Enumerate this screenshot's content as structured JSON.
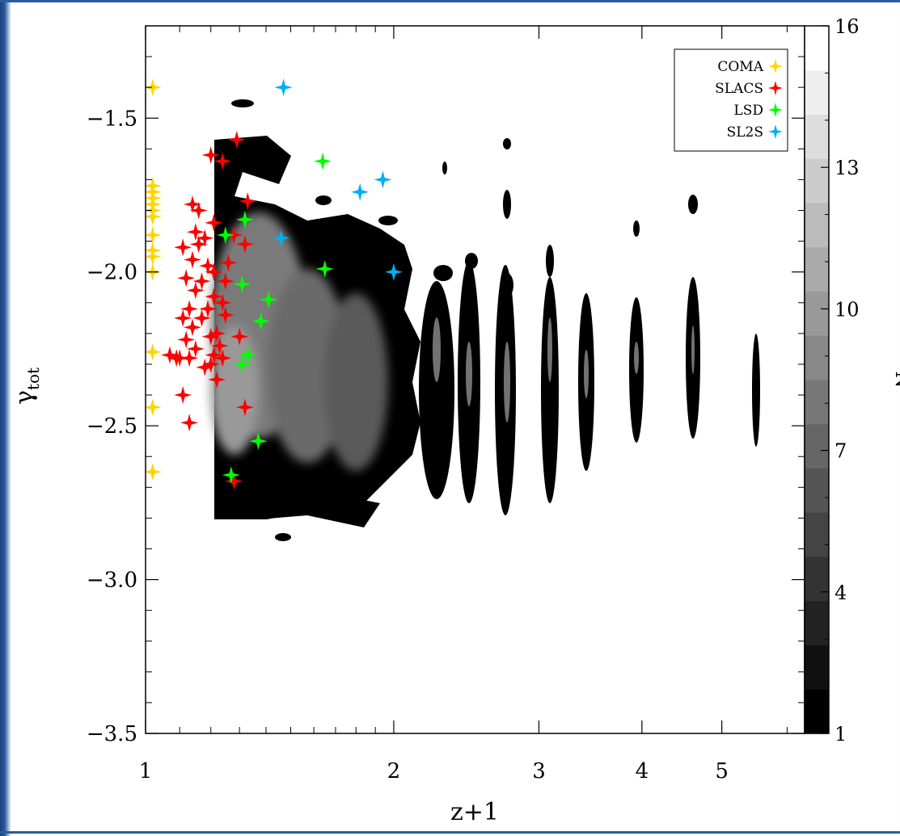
{
  "chart_data": {
    "type": "scatter",
    "xlabel": "z+1",
    "ylabel": "γ",
    "ylabel_sub": "tot",
    "x_scale": "log",
    "xlim": [
      1,
      6.3
    ],
    "ylim": [
      -3.5,
      -1.2
    ],
    "x_ticks": [
      1,
      2,
      3,
      4,
      5
    ],
    "x_tick_labels": [
      "1",
      "2",
      "3",
      "4",
      "5"
    ],
    "y_ticks": [
      -1.5,
      -2.0,
      -2.5,
      -3.0,
      -3.5
    ],
    "y_tick_labels": [
      "−1.5",
      "−2.0",
      "−2.5",
      "−3.0",
      "−3.5"
    ],
    "colorbar": {
      "label": "N",
      "range": [
        1,
        16
      ],
      "ticks": [
        1,
        4,
        7,
        10,
        13,
        16
      ],
      "tick_labels": [
        "1",
        "4",
        "7",
        "10",
        "13",
        "16"
      ]
    },
    "legend_placement": "top-right",
    "density_background": "grayscale contour map of simulated galaxies (N per cell)",
    "series": [
      {
        "name": "COMA",
        "color": "#ffd700",
        "points": [
          [
            1.02,
            -1.4
          ],
          [
            1.02,
            -1.72
          ],
          [
            1.02,
            -1.74
          ],
          [
            1.02,
            -1.76
          ],
          [
            1.02,
            -1.78
          ],
          [
            1.02,
            -1.8
          ],
          [
            1.02,
            -1.82
          ],
          [
            1.02,
            -1.88
          ],
          [
            1.02,
            -1.93
          ],
          [
            1.02,
            -1.95
          ],
          [
            1.02,
            -2.0
          ],
          [
            1.02,
            -2.26
          ],
          [
            1.02,
            -2.44
          ],
          [
            1.02,
            -2.65
          ]
        ]
      },
      {
        "name": "SLACS",
        "color": "#ff0000",
        "points": [
          [
            1.2,
            -1.62
          ],
          [
            1.24,
            -1.64
          ],
          [
            1.29,
            -1.57
          ],
          [
            1.33,
            -1.77
          ],
          [
            1.32,
            -1.91
          ],
          [
            1.28,
            -1.88
          ],
          [
            1.26,
            -1.97
          ],
          [
            1.25,
            -2.03
          ],
          [
            1.24,
            -2.1
          ],
          [
            1.25,
            -2.14
          ],
          [
            1.22,
            -2.2
          ],
          [
            1.24,
            -2.28
          ],
          [
            1.22,
            -2.35
          ],
          [
            1.2,
            -2.3
          ],
          [
            1.18,
            -2.31
          ],
          [
            1.15,
            -2.25
          ],
          [
            1.13,
            -2.28
          ],
          [
            1.1,
            -2.28
          ],
          [
            1.12,
            -2.22
          ],
          [
            1.14,
            -2.18
          ],
          [
            1.17,
            -2.15
          ],
          [
            1.19,
            -2.12
          ],
          [
            1.21,
            -2.08
          ],
          [
            1.21,
            -2.0
          ],
          [
            1.19,
            -1.98
          ],
          [
            1.17,
            -2.03
          ],
          [
            1.15,
            -2.06
          ],
          [
            1.12,
            -2.02
          ],
          [
            1.14,
            -1.96
          ],
          [
            1.16,
            -1.91
          ],
          [
            1.18,
            -1.89
          ],
          [
            1.21,
            -1.84
          ],
          [
            1.16,
            -1.8
          ],
          [
            1.14,
            -1.78
          ],
          [
            1.15,
            -1.87
          ],
          [
            1.11,
            -1.92
          ],
          [
            1.13,
            -2.12
          ],
          [
            1.11,
            -2.15
          ],
          [
            1.09,
            -2.28
          ],
          [
            1.07,
            -2.27
          ],
          [
            1.11,
            -2.4
          ],
          [
            1.13,
            -2.49
          ],
          [
            1.3,
            -2.21
          ],
          [
            1.32,
            -2.44
          ],
          [
            1.28,
            -2.68
          ],
          [
            1.21,
            -2.27
          ],
          [
            1.23,
            -2.24
          ],
          [
            1.2,
            -2.21
          ]
        ]
      },
      {
        "name": "LSD",
        "color": "#00ff00",
        "points": [
          [
            1.64,
            -1.64
          ],
          [
            1.32,
            -1.83
          ],
          [
            1.25,
            -1.88
          ],
          [
            1.31,
            -2.04
          ],
          [
            1.41,
            -2.09
          ],
          [
            1.38,
            -2.16
          ],
          [
            1.33,
            -2.27
          ],
          [
            1.31,
            -2.3
          ],
          [
            1.37,
            -2.55
          ],
          [
            1.27,
            -2.66
          ],
          [
            1.65,
            -1.99
          ]
        ]
      },
      {
        "name": "SL2S",
        "color": "#00b0f0",
        "points": [
          [
            1.47,
            -1.4
          ],
          [
            1.94,
            -1.7
          ],
          [
            1.82,
            -1.74
          ],
          [
            1.46,
            -1.89
          ],
          [
            2.0,
            -2.0
          ]
        ]
      }
    ]
  }
}
